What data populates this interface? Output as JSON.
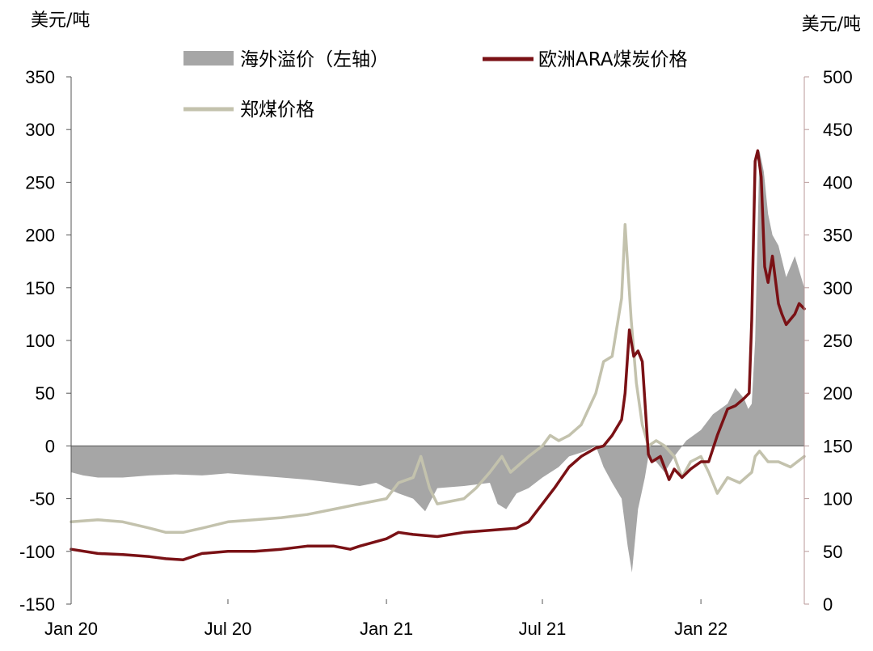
{
  "chart_data": {
    "type": "line",
    "left_unit": "美元/吨",
    "right_unit": "美元/吨",
    "left_axis": {
      "ylim": [
        -150,
        350
      ],
      "ticks": [
        "-150",
        "-100",
        "-50",
        "0",
        "50",
        "100",
        "150",
        "200",
        "250",
        "300",
        "350"
      ]
    },
    "right_axis": {
      "ylim": [
        0,
        500
      ],
      "ticks": [
        "0",
        "50",
        "100",
        "150",
        "200",
        "250",
        "300",
        "350",
        "400",
        "450",
        "500"
      ]
    },
    "x_ticks": [
      "Jan 20",
      "Jul 20",
      "Jan 21",
      "Jul 21",
      "Jan 22"
    ],
    "x_tick_dates": [
      "2020-01",
      "2020-07",
      "2021-01",
      "2021-07",
      "2022-01"
    ],
    "x_range": [
      "2020-01",
      "2022-05"
    ],
    "legend": {
      "spread": "海外溢价（左轴）",
      "ara": "欧洲ARA煤炭价格",
      "zheng": "郑煤价格"
    },
    "colors": {
      "spread": "#a6a6a6",
      "ara": "#7a1115",
      "zheng": "#c3c2ad"
    },
    "series": [
      {
        "name": "海外溢价（左轴）",
        "axis": "left",
        "style": "area",
        "x": [
          "2020-01",
          "2020-01-15",
          "2020-02",
          "2020-03",
          "2020-04",
          "2020-05",
          "2020-06",
          "2020-07",
          "2020-08",
          "2020-09",
          "2020-10",
          "2020-11",
          "2020-12",
          "2020-12-20",
          "2021-01",
          "2021-01-15",
          "2021-02",
          "2021-02-15",
          "2021-03",
          "2021-04",
          "2021-05",
          "2021-05-10",
          "2021-05-20",
          "2021-06",
          "2021-06-15",
          "2021-07",
          "2021-07-20",
          "2021-08",
          "2021-08-20",
          "2021-09",
          "2021-09-10",
          "2021-09-20",
          "2021-10",
          "2021-10-08",
          "2021-10-13",
          "2021-10-20",
          "2021-10-28",
          "2021-11",
          "2021-11-10",
          "2021-11-20",
          "2021-12",
          "2021-12-15",
          "2022-01",
          "2022-01-15",
          "2022-02",
          "2022-02-10",
          "2022-02-20",
          "2022-02-25",
          "2022-03",
          "2022-03-05",
          "2022-03-10",
          "2022-03-15",
          "2022-03-20",
          "2022-03-25",
          "2022-04",
          "2022-04-10",
          "2022-04-20",
          "2022-05"
        ],
        "values": [
          -25,
          -28,
          -30,
          -30,
          -28,
          -27,
          -28,
          -26,
          -28,
          -30,
          -32,
          -35,
          -38,
          -35,
          -40,
          -45,
          -50,
          -62,
          -40,
          -38,
          -35,
          -55,
          -60,
          -45,
          -40,
          -30,
          -20,
          -10,
          -5,
          0,
          -20,
          -35,
          -50,
          -95,
          -120,
          -60,
          -30,
          -10,
          -15,
          -25,
          -10,
          5,
          15,
          30,
          40,
          55,
          45,
          35,
          40,
          100,
          280,
          260,
          220,
          200,
          190,
          160,
          180,
          150
        ]
      },
      {
        "name": "欧洲ARA煤炭价格",
        "axis": "right",
        "style": "line",
        "x": [
          "2020-01",
          "2020-02",
          "2020-03",
          "2020-04",
          "2020-04-20",
          "2020-05-10",
          "2020-06",
          "2020-07",
          "2020-08",
          "2020-09",
          "2020-10",
          "2020-11",
          "2020-11-20",
          "2020-12",
          "2021-01",
          "2021-01-15",
          "2021-02",
          "2021-03",
          "2021-04",
          "2021-05",
          "2021-06",
          "2021-06-15",
          "2021-07",
          "2021-07-15",
          "2021-08",
          "2021-08-15",
          "2021-09",
          "2021-09-10",
          "2021-09-20",
          "2021-10",
          "2021-10-05",
          "2021-10-10",
          "2021-10-15",
          "2021-10-20",
          "2021-10-25",
          "2021-11",
          "2021-11-05",
          "2021-11-15",
          "2021-11-25",
          "2021-12",
          "2021-12-10",
          "2021-12-20",
          "2022-01",
          "2022-01-10",
          "2022-01-20",
          "2022-02",
          "2022-02-10",
          "2022-02-20",
          "2022-02-26",
          "2022-03",
          "2022-03-05",
          "2022-03-08",
          "2022-03-12",
          "2022-03-16",
          "2022-03-20",
          "2022-03-25",
          "2022-04",
          "2022-04-05",
          "2022-04-10",
          "2022-04-20",
          "2022-04-25",
          "2022-05"
        ],
        "values": [
          52,
          48,
          47,
          45,
          43,
          42,
          48,
          50,
          50,
          52,
          55,
          55,
          52,
          55,
          62,
          68,
          66,
          64,
          68,
          70,
          72,
          78,
          95,
          110,
          130,
          140,
          148,
          150,
          160,
          175,
          200,
          260,
          235,
          240,
          230,
          142,
          135,
          140,
          118,
          128,
          120,
          128,
          135,
          135,
          160,
          185,
          188,
          195,
          200,
          270,
          420,
          430,
          405,
          320,
          305,
          330,
          285,
          275,
          265,
          275,
          285,
          280
        ]
      },
      {
        "name": "郑煤价格",
        "axis": "right",
        "style": "line",
        "x": [
          "2020-01",
          "2020-02",
          "2020-03",
          "2020-04",
          "2020-04-20",
          "2020-05-10",
          "2020-06",
          "2020-07",
          "2020-08",
          "2020-09",
          "2020-10",
          "2020-11",
          "2020-12",
          "2021-01",
          "2021-01-15",
          "2021-02",
          "2021-02-10",
          "2021-02-20",
          "2021-03",
          "2021-04",
          "2021-04-15",
          "2021-05",
          "2021-05-15",
          "2021-05-25",
          "2021-06",
          "2021-06-15",
          "2021-07",
          "2021-07-10",
          "2021-07-20",
          "2021-08",
          "2021-08-15",
          "2021-09",
          "2021-09-10",
          "2021-09-20",
          "2021-10",
          "2021-10-05",
          "2021-10-12",
          "2021-10-18",
          "2021-10-25",
          "2021-11",
          "2021-11-10",
          "2021-11-20",
          "2021-12",
          "2021-12-10",
          "2021-12-20",
          "2022-01",
          "2022-01-10",
          "2022-01-20",
          "2022-02",
          "2022-02-15",
          "2022-03",
          "2022-03-05",
          "2022-03-10",
          "2022-03-20",
          "2022-04",
          "2022-04-15",
          "2022-05"
        ],
        "values": [
          78,
          80,
          78,
          72,
          68,
          68,
          72,
          78,
          80,
          82,
          85,
          90,
          95,
          100,
          115,
          120,
          140,
          110,
          95,
          100,
          110,
          125,
          140,
          125,
          130,
          140,
          150,
          160,
          155,
          160,
          170,
          200,
          230,
          235,
          290,
          360,
          270,
          210,
          170,
          150,
          155,
          150,
          140,
          120,
          135,
          140,
          125,
          105,
          120,
          115,
          125,
          140,
          145,
          135,
          135,
          130,
          140
        ]
      }
    ]
  }
}
